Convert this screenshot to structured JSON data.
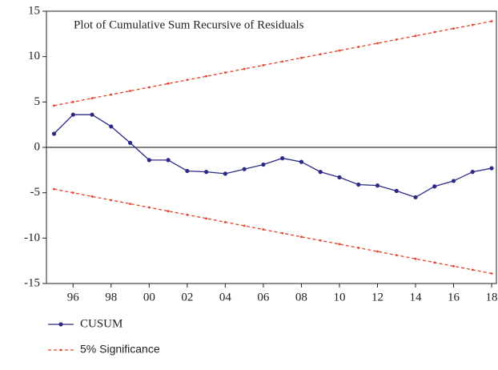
{
  "chart_data": {
    "type": "line",
    "title": "Plot of Cumulative Sum Recursive of Residuals",
    "x": [
      1995,
      1996,
      1997,
      1998,
      1999,
      2000,
      2001,
      2002,
      2003,
      2004,
      2005,
      2006,
      2007,
      2008,
      2009,
      2010,
      2011,
      2012,
      2013,
      2014,
      2015,
      2016,
      2017,
      2018
    ],
    "series": [
      {
        "name": "CUSUM",
        "color": "#2b2a86",
        "dashed": false,
        "values": [
          1.5,
          3.6,
          3.6,
          2.3,
          0.5,
          -1.4,
          -1.4,
          -2.6,
          -2.7,
          -2.9,
          -2.4,
          -1.9,
          -1.2,
          -1.6,
          -2.7,
          -3.3,
          -4.1,
          -4.2,
          -4.8,
          -5.5,
          -4.3,
          -3.7,
          -2.7,
          -2.3
        ]
      },
      {
        "name": "5% Significance",
        "color": "#e8412a",
        "dashed": true,
        "values": [
          4.6,
          5.0,
          5.41,
          5.81,
          6.22,
          6.62,
          7.03,
          7.43,
          7.83,
          8.24,
          8.64,
          9.05,
          9.45,
          9.86,
          10.26,
          10.66,
          11.07,
          11.47,
          11.88,
          12.28,
          12.69,
          13.09,
          13.49,
          13.9
        ]
      },
      {
        "color": "#e8412a",
        "dashed": true,
        "values": [
          -4.6,
          -5.0,
          -5.41,
          -5.81,
          -6.22,
          -6.62,
          -7.03,
          -7.43,
          -7.83,
          -8.24,
          -8.64,
          -9.05,
          -9.45,
          -9.86,
          -10.26,
          -10.66,
          -11.07,
          -11.47,
          -11.88,
          -12.28,
          -12.69,
          -13.09,
          -13.49,
          -13.9
        ]
      }
    ],
    "xlim": [
      1994.6,
      2018.25
    ],
    "ylim": [
      -15,
      15
    ],
    "yticks": [
      -15,
      -10,
      -5,
      0,
      5,
      10,
      15
    ],
    "xticks": [
      {
        "value": 1996,
        "label": "96"
      },
      {
        "value": 1998,
        "label": "98"
      },
      {
        "value": 2000,
        "label": "00"
      },
      {
        "value": 2002,
        "label": "02"
      },
      {
        "value": 2004,
        "label": "04"
      },
      {
        "value": 2006,
        "label": "06"
      },
      {
        "value": 2008,
        "label": "08"
      },
      {
        "value": 2010,
        "label": "10"
      },
      {
        "value": 2012,
        "label": "12"
      },
      {
        "value": 2014,
        "label": "14"
      },
      {
        "value": 2016,
        "label": "16"
      },
      {
        "value": 2018,
        "label": "18"
      }
    ],
    "zero_line": true,
    "grid": false
  }
}
